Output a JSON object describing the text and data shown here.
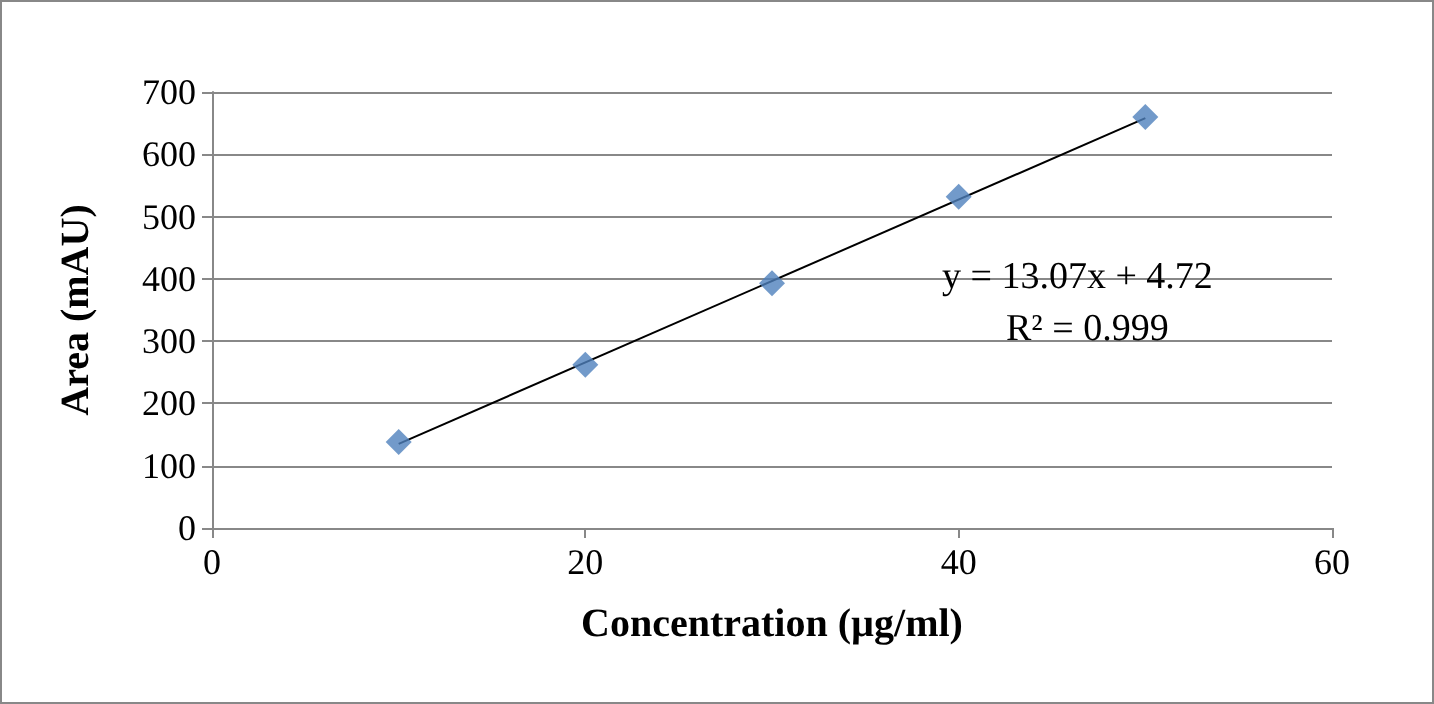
{
  "chart_data": {
    "type": "scatter",
    "xlabel": "Concentration (µg/ml)",
    "ylabel": "Area (mAU)",
    "series": [
      {
        "color": "#4f81bd",
        "x": [
          10,
          20,
          30,
          40,
          50
        ],
        "values": [
          138,
          262,
          393,
          532,
          660
        ],
        "marker": "diamond"
      },
      {
        "type": "line",
        "color": "#000000",
        "x": [
          10,
          50
        ],
        "values": [
          135,
          658
        ],
        "marker": "none"
      }
    ],
    "xlim": [
      0,
      60
    ],
    "xticks": [
      0,
      20,
      40,
      60
    ],
    "ylim": [
      0,
      700
    ],
    "yticks": [
      0,
      100,
      200,
      300,
      400,
      500,
      600,
      700
    ],
    "grid": "y",
    "annotations": [
      "y = 13.07x + 4.72",
      "R² = 0.999"
    ]
  }
}
